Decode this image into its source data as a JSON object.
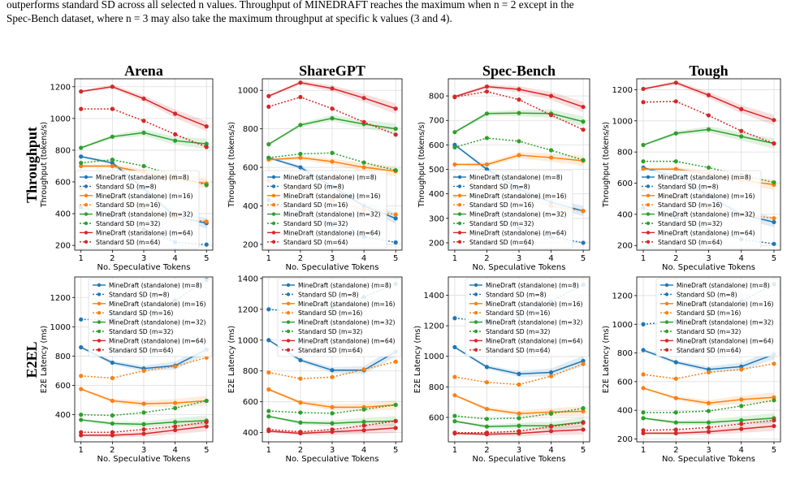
{
  "caption": {
    "line1": "outperforms standard SD across all selected n values. Throughput of MINEDRAFT reaches the maximum when n = 2 except in the",
    "line2": "Spec-Bench dataset, where n = 3 may also take the maximum throughput at specific k values (3 and 4)."
  },
  "columns": [
    "Arena",
    "ShareGPT",
    "Spec-Bench",
    "Tough"
  ],
  "rows": [
    "Throughput",
    "E2EL"
  ],
  "colors": {
    "m8": "#1f77b4",
    "m16": "#ff7f0e",
    "m32": "#2ca02c",
    "m64": "#d62728",
    "grid": "#dddddd",
    "axis": "#000000"
  },
  "chart_data": [
    {
      "type": "line",
      "column": "Arena",
      "row": "Throughput",
      "xlabel": "No. Speculative Tokens",
      "ylabel": "Throughput (tokens/s)",
      "x": [
        1,
        2,
        3,
        4,
        5
      ],
      "xticks": [
        "1",
        "2",
        "3",
        "4",
        "5"
      ],
      "ylim": [
        170,
        1250
      ],
      "yticks": [
        200,
        400,
        600,
        800,
        1000,
        1200
      ],
      "grid": true,
      "legend": "lower-left",
      "series": [
        {
          "name": "MineDraft (standalone) (m=8)",
          "values": [
            760,
            720,
            560,
            380,
            340
          ]
        },
        {
          "name": "Standard SD (m=8)",
          "values": [
            440,
            390,
            300,
            220,
            205
          ]
        },
        {
          "name": "MineDraft (standalone) (m=16)",
          "values": [
            700,
            700,
            660,
            620,
            590
          ]
        },
        {
          "name": "Standard SD (m=16)",
          "values": [
            560,
            500,
            440,
            380,
            350
          ]
        },
        {
          "name": "MineDraft (standalone) (m=32)",
          "values": [
            815,
            885,
            910,
            860,
            840
          ]
        },
        {
          "name": "Standard SD (m=32)",
          "values": [
            720,
            740,
            700,
            640,
            580
          ]
        },
        {
          "name": "MineDraft (standalone) (m=64)",
          "values": [
            1170,
            1200,
            1125,
            1030,
            950
          ]
        },
        {
          "name": "Standard SD (m=64)",
          "values": [
            1060,
            1060,
            985,
            900,
            820
          ]
        }
      ]
    },
    {
      "type": "line",
      "column": "ShareGPT",
      "row": "Throughput",
      "xlabel": "No. Speculative Tokens",
      "ylabel": "Throughput (tokens/s)",
      "x": [
        1,
        2,
        3,
        4,
        5
      ],
      "xticks": [
        "1",
        "2",
        "3",
        "4",
        "5"
      ],
      "ylim": [
        170,
        1060
      ],
      "yticks": [
        200,
        400,
        600,
        800,
        1000
      ],
      "grid": true,
      "legend": "lower-left",
      "series": [
        {
          "name": "MineDraft (standalone) (m=8)",
          "values": [
            650,
            600,
            500,
            400,
            335
          ]
        },
        {
          "name": "Standard SD (m=8)",
          "values": [
            430,
            370,
            300,
            240,
            210
          ]
        },
        {
          "name": "MineDraft (standalone) (m=16)",
          "values": [
            640,
            650,
            630,
            600,
            580
          ]
        },
        {
          "name": "Standard SD (m=16)",
          "values": [
            530,
            480,
            430,
            380,
            355
          ]
        },
        {
          "name": "MineDraft (standalone) (m=32)",
          "values": [
            720,
            820,
            855,
            825,
            800
          ]
        },
        {
          "name": "Standard SD (m=32)",
          "values": [
            650,
            670,
            675,
            625,
            585
          ]
        },
        {
          "name": "MineDraft (standalone) (m=64)",
          "values": [
            970,
            1040,
            1010,
            960,
            905
          ]
        },
        {
          "name": "Standard SD (m=64)",
          "values": [
            915,
            965,
            905,
            835,
            770
          ]
        }
      ]
    },
    {
      "type": "line",
      "column": "Spec-Bench",
      "row": "Throughput",
      "xlabel": "No. Speculative Tokens",
      "ylabel": "Throughput (tokens/s)",
      "x": [
        1,
        2,
        3,
        4,
        5
      ],
      "xticks": [
        "1",
        "2",
        "3",
        "4",
        "5"
      ],
      "ylim": [
        170,
        870
      ],
      "yticks": [
        200,
        300,
        400,
        500,
        600,
        700,
        800
      ],
      "grid": true,
      "legend": "lower-left",
      "series": [
        {
          "name": "MineDraft (standalone) (m=8)",
          "values": [
            600,
            500,
            420,
            365,
            330
          ]
        },
        {
          "name": "Standard SD (m=8)",
          "values": [
            390,
            320,
            260,
            225,
            200
          ]
        },
        {
          "name": "MineDraft (standalone) (m=16)",
          "values": [
            520,
            520,
            558,
            548,
            535
          ]
        },
        {
          "name": "Standard SD (m=16)",
          "values": [
            470,
            430,
            390,
            350,
            330
          ]
        },
        {
          "name": "MineDraft (standalone) (m=32)",
          "values": [
            652,
            728,
            730,
            728,
            695
          ]
        },
        {
          "name": "Standard SD (m=32)",
          "values": [
            590,
            628,
            615,
            578,
            538
          ]
        },
        {
          "name": "MineDraft (standalone) (m=64)",
          "values": [
            797,
            838,
            827,
            800,
            755
          ]
        },
        {
          "name": "Standard SD (m=64)",
          "values": [
            795,
            818,
            785,
            722,
            662
          ]
        }
      ]
    },
    {
      "type": "line",
      "column": "Tough",
      "row": "Throughput",
      "xlabel": "No. Speculative Tokens",
      "ylabel": "Throughput (tokens/s)",
      "x": [
        1,
        2,
        3,
        4,
        5
      ],
      "xticks": [
        "1",
        "2",
        "3",
        "4",
        "5"
      ],
      "ylim": [
        170,
        1270
      ],
      "yticks": [
        200,
        400,
        600,
        800,
        1000,
        1200
      ],
      "grid": true,
      "legend": "lower-left",
      "series": [
        {
          "name": "MineDraft (standalone) (m=8)",
          "values": [
            700,
            640,
            520,
            400,
            350
          ]
        },
        {
          "name": "Standard SD (m=8)",
          "values": [
            440,
            380,
            300,
            240,
            210
          ]
        },
        {
          "name": "MineDraft (standalone) (m=16)",
          "values": [
            690,
            690,
            660,
            620,
            590
          ]
        },
        {
          "name": "Standard SD (m=16)",
          "values": [
            560,
            500,
            440,
            400,
            375
          ]
        },
        {
          "name": "MineDraft (standalone) (m=32)",
          "values": [
            845,
            920,
            945,
            900,
            855
          ]
        },
        {
          "name": "Standard SD (m=32)",
          "values": [
            740,
            740,
            700,
            650,
            605
          ]
        },
        {
          "name": "MineDraft (standalone) (m=64)",
          "values": [
            1205,
            1245,
            1165,
            1075,
            1005
          ]
        },
        {
          "name": "Standard SD (m=64)",
          "values": [
            1120,
            1125,
            1035,
            935,
            855
          ]
        }
      ]
    },
    {
      "type": "line",
      "column": "Arena",
      "row": "E2EL",
      "xlabel": "No. Speculative Tokens",
      "ylabel": "E2E Latency (ms)",
      "x": [
        1,
        2,
        3,
        4,
        5
      ],
      "xticks": [
        "1",
        "2",
        "3",
        "4",
        "5"
      ],
      "ylim": [
        215,
        1340
      ],
      "yticks": [
        400,
        600,
        800,
        1000,
        1200
      ],
      "grid": true,
      "legend": "upper-right",
      "series": [
        {
          "name": "MineDraft (standalone) (m=8)",
          "values": [
            860,
            755,
            715,
            735,
            845
          ]
        },
        {
          "name": "Standard SD (m=8)",
          "values": [
            1050,
            1050,
            1080,
            1180,
            1320
          ]
        },
        {
          "name": "MineDraft (standalone) (m=16)",
          "values": [
            575,
            495,
            475,
            480,
            495
          ]
        },
        {
          "name": "Standard SD (m=16)",
          "values": [
            665,
            650,
            700,
            730,
            790
          ]
        },
        {
          "name": "MineDraft (standalone) (m=32)",
          "values": [
            365,
            340,
            335,
            350,
            360
          ]
        },
        {
          "name": "Standard SD (m=32)",
          "values": [
            400,
            395,
            415,
            445,
            495
          ]
        },
        {
          "name": "MineDraft (standalone) (m=64)",
          "values": [
            260,
            260,
            270,
            295,
            320
          ]
        },
        {
          "name": "Standard SD (m=64)",
          "values": [
            280,
            280,
            300,
            320,
            350
          ]
        }
      ]
    },
    {
      "type": "line",
      "column": "ShareGPT",
      "row": "E2EL",
      "xlabel": "No. Speculative Tokens",
      "ylabel": "E2E Latency (ms)",
      "x": [
        1,
        2,
        3,
        4,
        5
      ],
      "xticks": [
        "1",
        "2",
        "3",
        "4",
        "5"
      ],
      "ylim": [
        340,
        1410
      ],
      "yticks": [
        400,
        600,
        800,
        1000,
        1200,
        1400
      ],
      "grid": true,
      "legend": "upper-right",
      "series": [
        {
          "name": "MineDraft (standalone) (m=8)",
          "values": [
            1000,
            870,
            805,
            805,
            925
          ]
        },
        {
          "name": "Standard SD (m=8)",
          "values": [
            1200,
            1180,
            1210,
            1280,
            1365
          ]
        },
        {
          "name": "MineDraft (standalone) (m=16)",
          "values": [
            680,
            595,
            565,
            565,
            580
          ]
        },
        {
          "name": "Standard SD (m=16)",
          "values": [
            790,
            750,
            760,
            810,
            860
          ]
        },
        {
          "name": "MineDraft (standalone) (m=32)",
          "values": [
            505,
            465,
            460,
            470,
            475
          ]
        },
        {
          "name": "Standard SD (m=32)",
          "values": [
            540,
            530,
            525,
            550,
            580
          ]
        },
        {
          "name": "MineDraft (standalone) (m=64)",
          "values": [
            410,
            395,
            405,
            415,
            430
          ]
        },
        {
          "name": "Standard SD (m=64)",
          "values": [
            420,
            405,
            420,
            445,
            475
          ]
        }
      ]
    },
    {
      "type": "line",
      "column": "Spec-Bench",
      "row": "E2EL",
      "xlabel": "No. Speculative Tokens",
      "ylabel": "E2E Latency (ms)",
      "x": [
        1,
        2,
        3,
        4,
        5
      ],
      "xticks": [
        "1",
        "2",
        "3",
        "4",
        "5"
      ],
      "ylim": [
        440,
        1520
      ],
      "yticks": [
        600,
        800,
        1000,
        1200,
        1400
      ],
      "grid": true,
      "legend": "upper-right",
      "series": [
        {
          "name": "MineDraft (standalone) (m=8)",
          "values": [
            1060,
            930,
            885,
            895,
            970
          ]
        },
        {
          "name": "Standard SD (m=8)",
          "values": [
            1250,
            1230,
            1260,
            1360,
            1470
          ]
        },
        {
          "name": "MineDraft (standalone) (m=16)",
          "values": [
            745,
            655,
            625,
            635,
            640
          ]
        },
        {
          "name": "Standard SD (m=16)",
          "values": [
            865,
            830,
            815,
            870,
            950
          ]
        },
        {
          "name": "MineDraft (standalone) (m=32)",
          "values": [
            575,
            540,
            545,
            545,
            570
          ]
        },
        {
          "name": "Standard SD (m=32)",
          "values": [
            610,
            590,
            595,
            625,
            660
          ]
        },
        {
          "name": "MineDraft (standalone) (m=64)",
          "values": [
            495,
            490,
            495,
            510,
            520
          ]
        },
        {
          "name": "Standard SD (m=64)",
          "values": [
            500,
            500,
            510,
            540,
            565
          ]
        }
      ]
    },
    {
      "type": "line",
      "column": "Tough",
      "row": "E2EL",
      "xlabel": "No. Speculative Tokens",
      "ylabel": "E2E Latency (ms)",
      "x": [
        1,
        2,
        3,
        4,
        5
      ],
      "xticks": [
        "1",
        "2",
        "3",
        "4",
        "5"
      ],
      "ylim": [
        180,
        1330
      ],
      "yticks": [
        200,
        400,
        600,
        800,
        1000,
        1200
      ],
      "grid": true,
      "legend": "upper-right",
      "series": [
        {
          "name": "MineDraft (standalone) (m=8)",
          "values": [
            820,
            735,
            685,
            705,
            790
          ]
        },
        {
          "name": "Standard SD (m=8)",
          "values": [
            1000,
            1020,
            1060,
            1160,
            1280
          ]
        },
        {
          "name": "MineDraft (standalone) (m=16)",
          "values": [
            555,
            485,
            450,
            475,
            490
          ]
        },
        {
          "name": "Standard SD (m=16)",
          "values": [
            650,
            620,
            665,
            685,
            725
          ]
        },
        {
          "name": "MineDraft (standalone) (m=32)",
          "values": [
            345,
            315,
            315,
            330,
            345
          ]
        },
        {
          "name": "Standard SD (m=32)",
          "values": [
            385,
            385,
            395,
            430,
            470
          ]
        },
        {
          "name": "MineDraft (standalone) (m=64)",
          "values": [
            240,
            240,
            250,
            270,
            290
          ]
        },
        {
          "name": "Standard SD (m=64)",
          "values": [
            260,
            265,
            280,
            305,
            330
          ]
        }
      ]
    }
  ]
}
